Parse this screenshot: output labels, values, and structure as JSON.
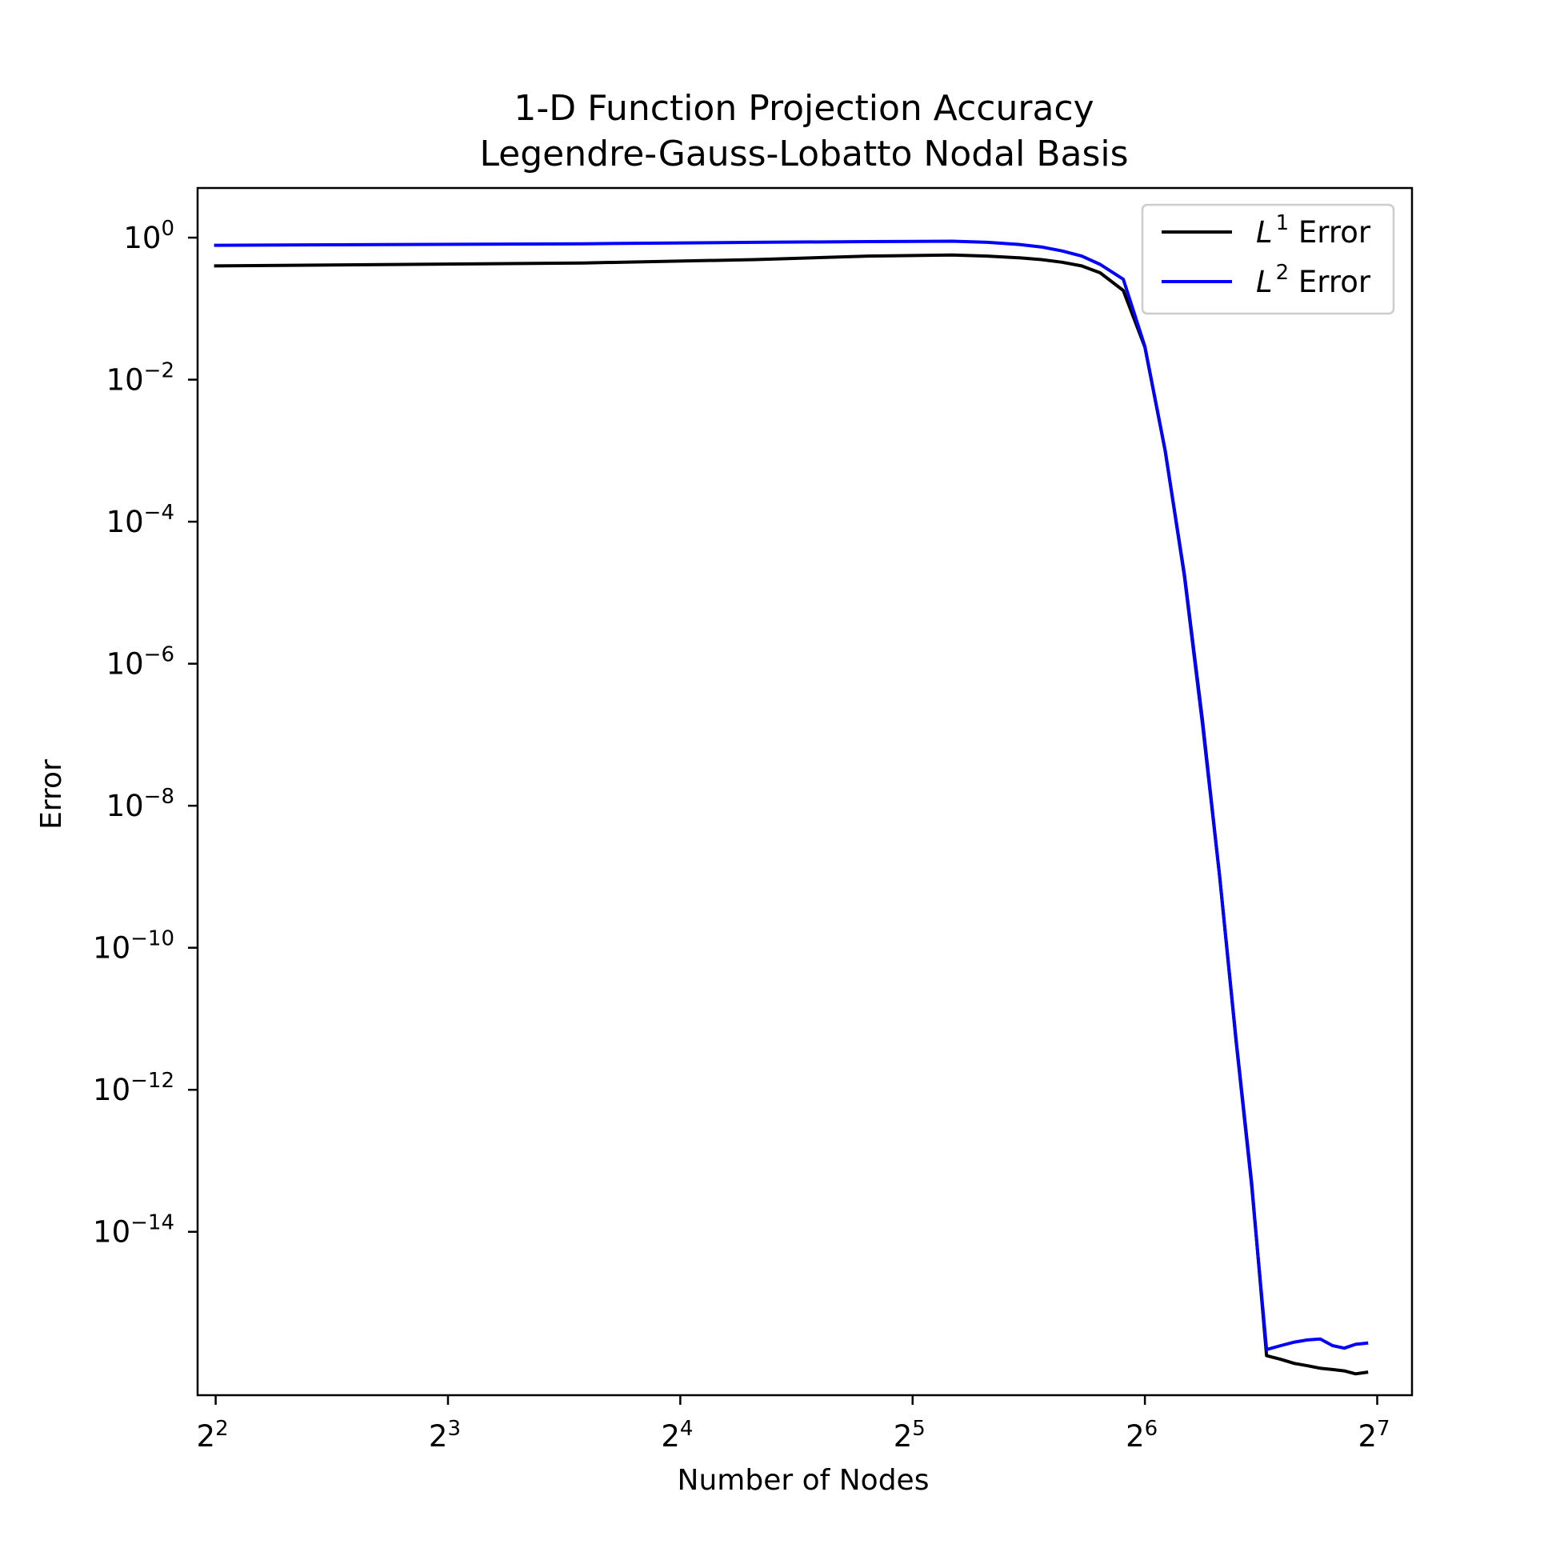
{
  "chart_data": {
    "type": "line",
    "title": [
      "1-D Function Projection Accuracy",
      "Legendre-Gauss-Lobatto Nodal Basis"
    ],
    "xlabel": "Number of Nodes",
    "ylabel": "Error",
    "xscale": "log2",
    "yscale": "log10",
    "xlim": [
      3.79,
      142.0
    ],
    "ylim": [
      5e-17,
      5.0
    ],
    "xticks": [
      {
        "value": 4,
        "base": "2",
        "exp": "2"
      },
      {
        "value": 8,
        "base": "2",
        "exp": "3"
      },
      {
        "value": 16,
        "base": "2",
        "exp": "4"
      },
      {
        "value": 32,
        "base": "2",
        "exp": "5"
      },
      {
        "value": 64,
        "base": "2",
        "exp": "6"
      },
      {
        "value": 128,
        "base": "2",
        "exp": "7"
      }
    ],
    "yticks": [
      {
        "value": 1,
        "base": "10",
        "exp": "0"
      },
      {
        "value": 0.01,
        "base": "10",
        "exp": "−2"
      },
      {
        "value": 0.0001,
        "base": "10",
        "exp": "−4"
      },
      {
        "value": 1e-06,
        "base": "10",
        "exp": "−6"
      },
      {
        "value": 1e-08,
        "base": "10",
        "exp": "−8"
      },
      {
        "value": 1e-10,
        "base": "10",
        "exp": "−10"
      },
      {
        "value": 1e-12,
        "base": "10",
        "exp": "−12"
      },
      {
        "value": 1e-14,
        "base": "10",
        "exp": "−14"
      }
    ],
    "grid": false,
    "legend_position": "top-right",
    "series": [
      {
        "name": "Error",
        "legend_symbol": "L",
        "legend_exp": "1",
        "color": "#000000",
        "x": [
          4,
          12,
          20,
          28,
          36,
          40,
          44,
          47,
          50,
          53,
          56,
          60,
          64,
          68,
          72,
          76,
          80,
          84,
          88,
          92,
          96,
          100,
          104,
          108,
          112,
          116,
          120,
          124
        ],
        "y": [
          0.4,
          0.44,
          0.49,
          0.55,
          0.57,
          0.55,
          0.52,
          0.49,
          0.45,
          0.4,
          0.32,
          0.18,
          0.0287,
          0.00099,
          1.82e-05,
          1.6e-07,
          1e-09,
          5.1e-12,
          5e-14,
          1.8e-16,
          1.6e-16,
          1.4e-16,
          1.3e-16,
          1.2e-16,
          1.15e-16,
          1.1e-16,
          1e-16,
          1.05e-16
        ]
      },
      {
        "name": "Error",
        "legend_symbol": "L",
        "legend_exp": "2",
        "color": "#0000ff",
        "x": [
          4,
          12,
          20,
          28,
          36,
          40,
          44,
          47,
          50,
          53,
          56,
          60,
          64,
          68,
          72,
          76,
          80,
          84,
          88,
          92,
          96,
          100,
          104,
          108,
          112,
          116,
          120,
          124
        ],
        "y": [
          0.78,
          0.82,
          0.86,
          0.88,
          0.89,
          0.86,
          0.8,
          0.74,
          0.65,
          0.55,
          0.42,
          0.26,
          0.0294,
          0.001,
          1.7e-05,
          1.4e-07,
          1e-09,
          4.8e-12,
          4.5e-14,
          2.2e-16,
          2.5e-16,
          2.8e-16,
          3e-16,
          3.1e-16,
          2.5e-16,
          2.3e-16,
          2.6e-16,
          2.7e-16
        ]
      }
    ]
  }
}
